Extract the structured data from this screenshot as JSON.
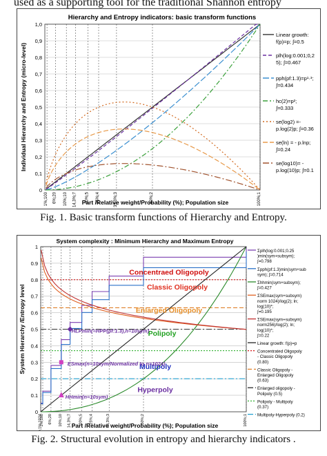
{
  "top_text": "used as a supporting tool for the traditional Shannon entropy",
  "figure1": {
    "caption": "Fig. 1.   Basic transform functions of Hierarchy and Entropy.",
    "chart_data": {
      "type": "line",
      "title": "Hierarchy and Entropy  indicators: basic transform functions",
      "ylabel": "Individual Hierarchy and Entropy (micro-level)",
      "xlabel": "Part /Relative weight/Probability  (%); Population size",
      "ylim": [
        0,
        1
      ],
      "xlim": [
        0,
        1
      ],
      "yticks": [
        "0",
        "0,1",
        "0,2",
        "0,3",
        "0,4",
        "0,5",
        "0,6",
        "0,7",
        "0,8",
        "0,9",
        "1,0"
      ],
      "xticks": [
        "1%;100",
        "6%;20",
        "10%;10",
        "14,3%;7",
        "20%;5",
        "25%;4",
        "33,3%;3",
        "50%;2",
        "100%;1"
      ],
      "xtick_positions": [
        0.01,
        0.05,
        0.1,
        0.143,
        0.2,
        0.25,
        0.333,
        0.5,
        1.0
      ],
      "grid": true,
      "legend_position": "right",
      "series": [
        {
          "name": "Linear growth: f(p)=p; ∫=0.5",
          "color": "#333333",
          "dash": "solid",
          "formula": "linear",
          "integral": 0.5
        },
        {
          "name": "plh(log:0.001;0,25); ∫=0.467",
          "color": "#6a2fa0",
          "dash": "5,3",
          "formula": "plh",
          "integral": 0.467
        },
        {
          "name": "pph(pf:1.3)=p^1.3; ∫=0.434",
          "color": "#3b8fd0",
          "dash": "9,3",
          "formula": "pow1.3",
          "integral": 0.434
        },
        {
          "name": "hc(2)=p²; ∫=0.333",
          "color": "#3aa03a",
          "dash": "7,3,2,3",
          "formula": "square",
          "integral": 0.333
        },
        {
          "name": "se(log2) = -p.log(2)p; ∫=0.36",
          "color": "#d2691e",
          "dash": "2,3",
          "formula": "log2",
          "integral": 0.36
        },
        {
          "name": "se(ln) = - p.lnp; ∫=0.24",
          "color": "#e89a4a",
          "dash": "7,3",
          "formula": "ln",
          "integral": 0.24
        },
        {
          "name": "se(log10)= -p.log(10)p; ∫=0.1",
          "color": "#a0522d",
          "dash": "9,3,2,3",
          "formula": "log10",
          "integral": 0.1
        }
      ],
      "legend_lines": [
        [
          "Linear growth:",
          "f(p)=p; ∫=0.5"
        ],
        [
          "plh(log:0.001;0,2",
          "5); ∫=0.467"
        ],
        [
          "pph(pf:1.3)=p¹·³;",
          "∫=0.434"
        ],
        [
          "hc(2)=p²;",
          "∫=0.333"
        ],
        [
          "se(log2) =-",
          "p.log(2)p; ∫=0.36"
        ],
        [
          "se(ln) = - p.lnp;",
          "∫=0.24"
        ],
        [
          "se(log10)= -",
          "p.log(10)p; ∫=0.1"
        ]
      ]
    }
  },
  "figure2": {
    "caption": "Fig. 2.   Structural evolution in entropy and hierarchy indicators .",
    "chart_data": {
      "type": "line",
      "title": "System complexity : Minimum Hierarchy and Maximum Entropy",
      "ylabel": "System Hierarchy /Entropy level",
      "xlabel": "Part /Relative weight/Probability  (%); Population size",
      "ylim": [
        0,
        1
      ],
      "xlim": [
        0,
        1
      ],
      "yticks": [
        "0",
        "0.1",
        "0.2",
        "0.3",
        "0.4",
        "0.5",
        "0.6",
        "0.7",
        "0.8",
        "0.9",
        "1"
      ],
      "xticks": [
        "0,1%;1024",
        "1%;100",
        "6%;20",
        "10%;10",
        "14,3%;7",
        "20%;5",
        "25%;4",
        "33,3%;3",
        "50%;2",
        "100%;1"
      ],
      "xtick_positions": [
        0.001,
        0.01,
        0.05,
        0.1,
        0.143,
        0.2,
        0.25,
        0.333,
        0.5,
        1.0
      ],
      "grid": true,
      "legend_position": "right",
      "thresholds": [
        {
          "name": "Concentrated Oligopoly - Classic Oligopoly (0.80)",
          "value": 0.8,
          "color": "#d01010",
          "dash": "2,2"
        },
        {
          "name": "Classic Oligopoly - Enlarged Oligopoly (0.63)",
          "value": 0.63,
          "color": "#e0802a",
          "dash": "6,3"
        },
        {
          "name": "Enlarged oligopoly - Polipoly (0.5)",
          "value": 0.5,
          "color": "#333333",
          "dash": "8,3,2,3"
        },
        {
          "name": "Polipoly - Multipoly (0.37)",
          "value": 0.37,
          "color": "#30b030",
          "dash": "2,2"
        },
        {
          "name": "Multipoly-Hyperpoly (0.2)",
          "value": 0.2,
          "color": "#20a0d0",
          "dash": "8,3,2,3"
        }
      ],
      "regions": [
        {
          "label": "Concentraed Oligopoly",
          "color": "#d01010"
        },
        {
          "label": "Classic Oligopoly",
          "color": "#e03020"
        },
        {
          "label": "Enlarged Oligopoly",
          "color": "#e8902a"
        },
        {
          "label": "Polipoly",
          "color": "#20a020"
        },
        {
          "label": "Multipoly",
          "color": "#2030c0"
        },
        {
          "label": "Hyperpoly",
          "color": "#6a2fa0"
        }
      ],
      "annotations": [
        {
          "label": "HLPmin(=HPP(pf:1.3),n=10sym)",
          "color": "#6a2fa0",
          "x": 0.143,
          "y": 0.5
        },
        {
          "label": "ESmax(n=10sym/Normalized to n=1024)",
          "color": "#6a2fa0",
          "x": 0.1,
          "y": 0.3
        },
        {
          "label": "HHmin(n=10sym)",
          "color": "#6a2fa0",
          "x": 0.1,
          "y": 0.1
        }
      ],
      "series": [
        {
          "name": "Σplh(log:0.001;0.25)min(sym+subsym); ∫=0.798",
          "color": "#7b3fb0",
          "marker": "x",
          "integral": 0.798
        },
        {
          "name": "Σpph(pf:1.3)min(sym+subsym); ∫=0.714",
          "color": "#2a70c8",
          "marker": "+",
          "integral": 0.714
        },
        {
          "name": "Σhhmin(sym+subsym); ∫=0.427",
          "color": "#2a8a2a",
          "marker": "^",
          "integral": 0.427
        },
        {
          "name": "ΣSEmax(sym+subsym) norm 1024)/log(2); ln; log(10)*; ∫=0.195",
          "color": "#e06020",
          "marker": "x",
          "integral": 0.195
        },
        {
          "name": "ΣSEmax(sym+subsym) norm256)/log(2); ln; log(10)*; ∫=0.22",
          "color": "#c03030",
          "marker": "o",
          "integral": 0.22
        },
        {
          "name": "Linear growth: f(p)=p",
          "color": "#222222",
          "marker": "",
          "integral": 0.5
        }
      ],
      "legend_lines": [
        [
          "Σplh(log:0.001;0.25",
          ")min(sym+subsym);",
          "∫=0.798"
        ],
        [
          "Σpph(pf:1.3)min(sym+sub",
          "sym); ∫=0.714"
        ],
        [
          "Σhhmin(sym+subsym);",
          "∫=0.427"
        ],
        [
          "ΣSEmax(sym+subsym)",
          "norm 1024)/log(2); ln;",
          "log(10)*;",
          "∫=0.195"
        ],
        [
          "ΣSEmax(sym+subsym)",
          "norm256)/log(2); ln;",
          "log(10)*;",
          "∫=0.22"
        ],
        [
          "Linear growth: f(p)=p"
        ],
        [
          "Concentrated Oligopoly",
          "- Classic Oligopoly",
          "(0.80)"
        ],
        [
          "Classic Oligopoly -",
          "Enlarged Oligopoly",
          "(0.63)"
        ],
        [
          "Enlarged oligopoly -",
          "Polipoly (0.5)"
        ],
        [
          "Polipoly - Multipoly",
          "(0.37)"
        ],
        [
          "Multipoly-Hyperpoly (0.2)"
        ]
      ]
    }
  }
}
